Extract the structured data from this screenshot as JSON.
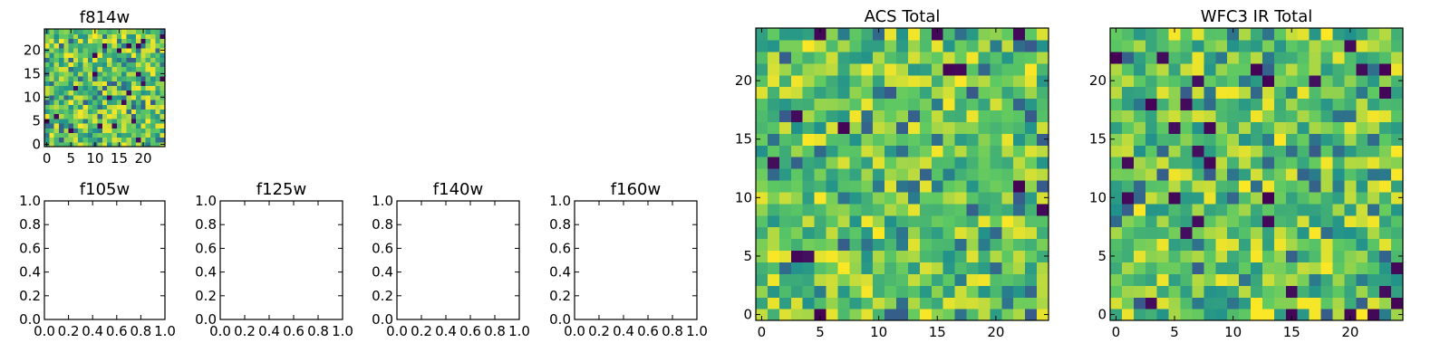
{
  "colormap": "viridis",
  "colors": {
    "viridis": [
      "#440154",
      "#3b528b",
      "#21918c",
      "#5ec962",
      "#fde725"
    ],
    "axes_frame": "#000000",
    "background": "#ffffff"
  },
  "chart_data": [
    {
      "type": "heatmap",
      "id": "f814w",
      "title": "f814w",
      "grid_size": 25,
      "xlim": [
        -0.5,
        24.5
      ],
      "ylim": [
        -0.5,
        24.5
      ],
      "xticks": [
        0,
        5,
        10,
        15,
        20
      ],
      "yticks": [
        0,
        5,
        10,
        15,
        20
      ],
      "xtick_labels": [
        "0",
        "5",
        "10",
        "15",
        "20"
      ],
      "ytick_labels": [
        "0",
        "5",
        "10",
        "15",
        "20"
      ],
      "seed": 814
    },
    {
      "type": "empty",
      "id": "f105w",
      "title": "f105w",
      "xlim": [
        0,
        1
      ],
      "ylim": [
        0,
        1
      ],
      "xtick_labels": [
        "0.0",
        "0.2",
        "0.4",
        "0.6",
        "0.8",
        "1.0"
      ],
      "ytick_labels": [
        "0.0",
        "0.2",
        "0.4",
        "0.6",
        "0.8",
        "1.0"
      ]
    },
    {
      "type": "empty",
      "id": "f125w",
      "title": "f125w",
      "xlim": [
        0,
        1
      ],
      "ylim": [
        0,
        1
      ],
      "xtick_labels": [
        "0.0",
        "0.2",
        "0.4",
        "0.6",
        "0.8",
        "1.0"
      ],
      "ytick_labels": [
        "0.0",
        "0.2",
        "0.4",
        "0.6",
        "0.8",
        "1.0"
      ]
    },
    {
      "type": "empty",
      "id": "f140w",
      "title": "f140w",
      "xlim": [
        0,
        1
      ],
      "ylim": [
        0,
        1
      ],
      "xtick_labels": [
        "0.0",
        "0.2",
        "0.4",
        "0.6",
        "0.8",
        "1.0"
      ],
      "ytick_labels": [
        "0.0",
        "0.2",
        "0.4",
        "0.6",
        "0.8",
        "1.0"
      ]
    },
    {
      "type": "empty",
      "id": "f160w",
      "title": "f160w",
      "xlim": [
        0,
        1
      ],
      "ylim": [
        0,
        1
      ],
      "xtick_labels": [
        "0.0",
        "0.2",
        "0.4",
        "0.6",
        "0.8",
        "1.0"
      ],
      "ytick_labels": [
        "0.0",
        "0.2",
        "0.4",
        "0.6",
        "0.8",
        "1.0"
      ]
    },
    {
      "type": "heatmap",
      "id": "acs-total",
      "title": "ACS Total",
      "grid_size": 25,
      "xlim": [
        -0.5,
        24.5
      ],
      "ylim": [
        -0.5,
        24.5
      ],
      "xticks": [
        0,
        5,
        10,
        15,
        20
      ],
      "yticks": [
        0,
        5,
        10,
        15,
        20
      ],
      "xtick_labels": [
        "0",
        "5",
        "10",
        "15",
        "20"
      ],
      "ytick_labels": [
        "0",
        "5",
        "10",
        "15",
        "20"
      ],
      "seed": 2718
    },
    {
      "type": "heatmap",
      "id": "wfc3-ir-total",
      "title": "WFC3 IR Total",
      "grid_size": 25,
      "xlim": [
        -0.5,
        24.5
      ],
      "ylim": [
        -0.5,
        24.5
      ],
      "xticks": [
        0,
        5,
        10,
        15,
        20
      ],
      "yticks": [
        0,
        5,
        10,
        15,
        20
      ],
      "xtick_labels": [
        "0",
        "5",
        "10",
        "15",
        "20"
      ],
      "ytick_labels": [
        "0",
        "5",
        "10",
        "15",
        "20"
      ],
      "seed": 3141
    }
  ]
}
